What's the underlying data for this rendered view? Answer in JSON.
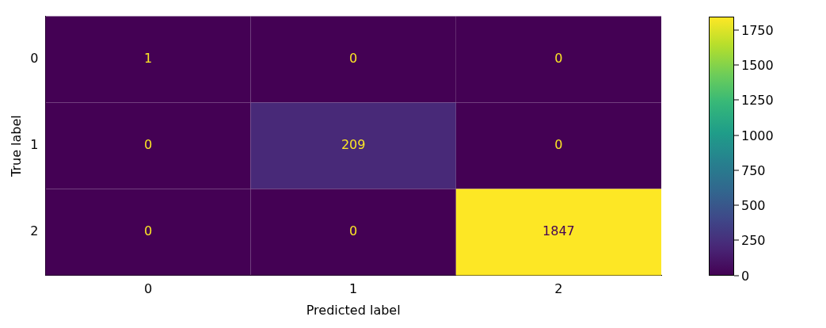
{
  "chart_data": {
    "type": "heatmap",
    "xlabel": "Predicted label",
    "ylabel": "True label",
    "categories": [
      "0",
      "1",
      "2"
    ],
    "y_categories": [
      "0",
      "1",
      "2"
    ],
    "cells": [
      [
        1,
        0,
        0
      ],
      [
        0,
        209,
        0
      ],
      [
        0,
        0,
        1847
      ]
    ],
    "clim": [
      0,
      1847
    ],
    "cticks": [
      0,
      250,
      500,
      750,
      1000,
      1250,
      1500,
      1750
    ],
    "data_labels": true,
    "grid": false,
    "legend": false
  }
}
